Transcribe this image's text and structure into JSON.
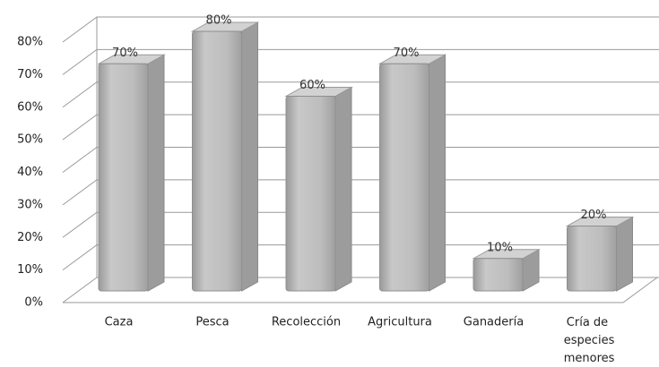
{
  "chart_data": {
    "type": "bar3d",
    "categories": [
      "Caza",
      "Pesca",
      "Recolección",
      "Agricultura",
      "Ganadería",
      "Cría de especies menores"
    ],
    "values": [
      70,
      80,
      60,
      70,
      10,
      20
    ],
    "value_labels": [
      "70%",
      "80%",
      "60%",
      "70%",
      "10%",
      "20%"
    ],
    "color": "#b4b4b4",
    "ylim": [
      0,
      80
    ],
    "yticks": [
      {
        "value": 0,
        "label": "0%"
      },
      {
        "value": 10,
        "label": "10%"
      },
      {
        "value": 20,
        "label": "20%"
      },
      {
        "value": 30,
        "label": "30%"
      },
      {
        "value": 40,
        "label": "40%"
      },
      {
        "value": 50,
        "label": "50%"
      },
      {
        "value": 60,
        "label": "60%"
      },
      {
        "value": 70,
        "label": "70%"
      },
      {
        "value": 80,
        "label": "80%"
      }
    ],
    "grid": true
  }
}
